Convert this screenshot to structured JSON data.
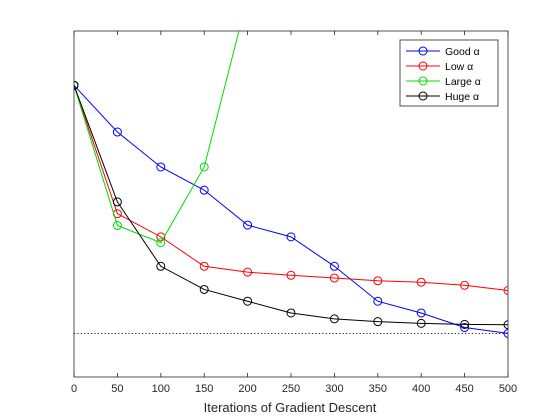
{
  "chart_data": {
    "type": "line",
    "xlabel": "Iterations of Gradient Descent",
    "ylabel": "",
    "xlim": [
      0,
      500
    ],
    "ylim": [
      0,
      1
    ],
    "x_ticks": [
      0,
      50,
      100,
      150,
      200,
      250,
      300,
      350,
      400,
      450,
      500
    ],
    "x_tick_labels": [
      "0",
      "50",
      "100",
      "150",
      "200",
      "250",
      "300",
      "350",
      "400",
      "450",
      "500"
    ],
    "grid": false,
    "legend_position": "top-right",
    "reference_line": {
      "y": 0.126,
      "style": "dotted",
      "color": "#000000"
    },
    "series": [
      {
        "name": "Good α",
        "color": "#0000FF",
        "x": [
          0,
          50,
          100,
          150,
          200,
          250,
          300,
          350,
          400,
          450,
          500
        ],
        "y": [
          0.843,
          0.708,
          0.607,
          0.54,
          0.439,
          0.405,
          0.32,
          0.219,
          0.185,
          0.143,
          0.126
        ]
      },
      {
        "name": "Low α",
        "color": "#FF0000",
        "x": [
          0,
          50,
          100,
          150,
          200,
          250,
          300,
          350,
          400,
          450,
          500
        ],
        "y": [
          0.843,
          0.472,
          0.405,
          0.32,
          0.303,
          0.294,
          0.286,
          0.278,
          0.274,
          0.265,
          0.25
        ]
      },
      {
        "name": "Large α",
        "color": "#00DD00",
        "x": [
          0,
          50,
          100,
          150,
          190
        ],
        "y": [
          0.843,
          0.438,
          0.388,
          0.607,
          1.0
        ]
      },
      {
        "name": "Huge α",
        "color": "#000000",
        "x": [
          0,
          50,
          100,
          150,
          200,
          250,
          300,
          350,
          400,
          450,
          500
        ],
        "y": [
          0.843,
          0.506,
          0.32,
          0.253,
          0.219,
          0.185,
          0.168,
          0.16,
          0.155,
          0.152,
          0.151
        ]
      }
    ]
  }
}
